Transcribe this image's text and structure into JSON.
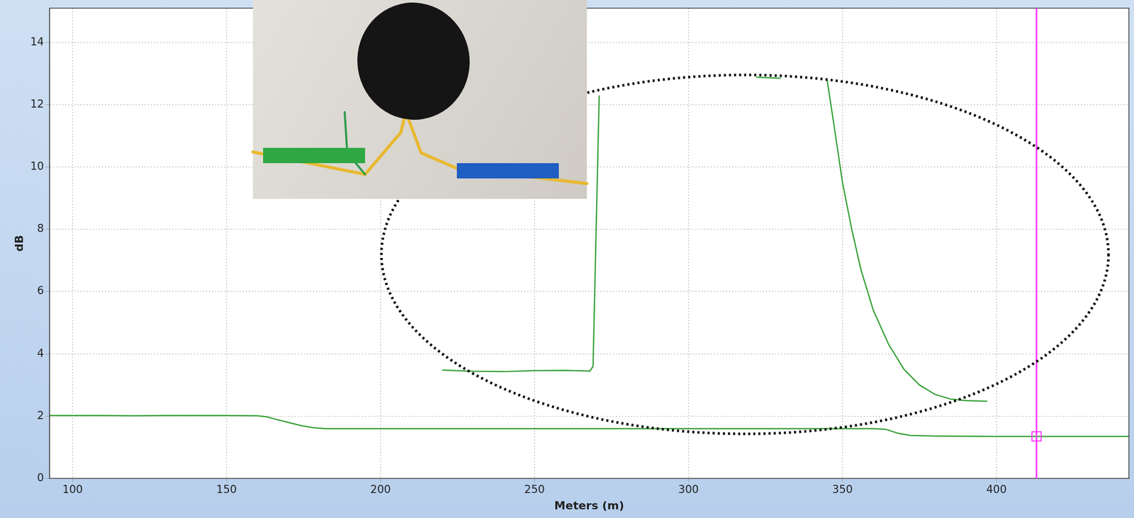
{
  "chart_data": {
    "type": "line",
    "x_label": "Meters (m)",
    "y_label": "dB",
    "xlim": [
      92.5,
      443
    ],
    "xticks": [
      100,
      150,
      200,
      250,
      300,
      350,
      400
    ],
    "ylim": [
      0,
      15.1
    ],
    "yticks": [
      0,
      2,
      4,
      6,
      8,
      10,
      12,
      14
    ],
    "grid": true,
    "series": [
      {
        "color": "#35a035",
        "x": [
          92.5,
          100,
          110,
          120,
          130,
          140,
          150,
          160,
          163,
          166,
          170,
          174,
          178,
          182,
          190,
          200,
          220,
          240,
          260,
          280,
          300,
          320,
          340,
          360,
          364,
          368,
          372,
          380,
          400,
          420,
          443
        ],
        "values": [
          2.02,
          2.02,
          2.02,
          2.01,
          2.02,
          2.02,
          2.02,
          2.01,
          1.98,
          1.9,
          1.8,
          1.7,
          1.63,
          1.6,
          1.6,
          1.6,
          1.6,
          1.6,
          1.6,
          1.6,
          1.6,
          1.6,
          1.6,
          1.6,
          1.58,
          1.45,
          1.38,
          1.36,
          1.35,
          1.35,
          1.35
        ]
      },
      {
        "color": "#35a035",
        "x": [
          220,
          230,
          240,
          250,
          260,
          268,
          269,
          270,
          271,
          272,
          322,
          330,
          331,
          345,
          347,
          350,
          353,
          356,
          360,
          365,
          370,
          375,
          380,
          385,
          390,
          397
        ],
        "values": [
          3.48,
          3.44,
          3.43,
          3.46,
          3.47,
          3.45,
          3.6,
          8,
          12.3,
          null,
          12.88,
          12.85,
          null,
          12.8,
          11.5,
          9.5,
          8,
          6.7,
          5.4,
          4.3,
          3.5,
          3.0,
          2.7,
          2.55,
          2.5,
          2.48
        ]
      }
    ],
    "cursor": {
      "x": 413,
      "y": 1.35,
      "color": "#ff33ff"
    }
  }
}
